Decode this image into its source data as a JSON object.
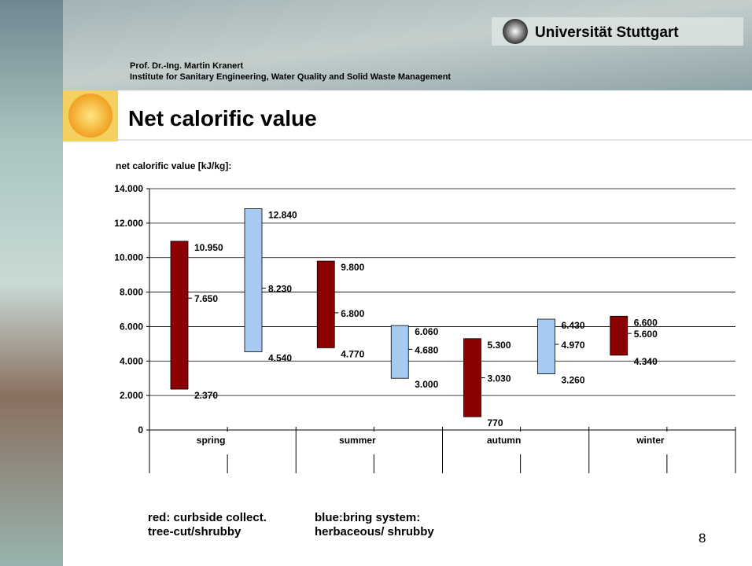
{
  "slide": {
    "university": "Universität Stuttgart",
    "author": "Prof. Dr.-Ing. Martin Kranert",
    "institute": "Institute for Sanitary Engineering, Water Quality and Solid Waste Management",
    "page": "8"
  },
  "chart_data": {
    "type": "range-bar",
    "title": "Net calorific value",
    "y_label": "net calorific value [kJ/kg]:",
    "categories": [
      "spring",
      "summer",
      "autumn",
      "winter"
    ],
    "ylim": [
      0,
      14000
    ],
    "yticks": [
      0,
      {
        "value": 2000,
        "label": "2.000"
      },
      {
        "value": 4000,
        "label": "4.000"
      },
      {
        "value": 6000,
        "label": "6.000"
      },
      {
        "value": 8000,
        "label": "8.000"
      },
      {
        "value": 10000,
        "label": "10.000"
      },
      {
        "value": 12000,
        "label": "12.000"
      },
      {
        "value": 14000,
        "label": "14.000"
      }
    ],
    "grid": true,
    "series": [
      {
        "name_lines": [
          "red: curbside collect.",
          "tree-cut/shrubby"
        ],
        "color": "#8b0000",
        "min": {
          "values": [
            2370,
            4770,
            770,
            4340
          ],
          "value_labels": [
            "2.370",
            "4.770",
            "770",
            "4.340"
          ]
        },
        "mean": {
          "values": [
            7650,
            6800,
            3030,
            5600
          ],
          "value_labels": [
            "7.650",
            "6.800",
            "3.030",
            "5.600"
          ]
        },
        "max": {
          "values": [
            10950,
            9800,
            5300,
            6600
          ],
          "value_labels": [
            "10.950",
            "9.800",
            "5.300",
            "6.600"
          ]
        }
      },
      {
        "name_lines": [
          "blue:bring system:",
          "herbaceous/ shrubby"
        ],
        "color": "#a6caf0",
        "min": {
          "values": [
            4540,
            3000,
            3260,
            null
          ],
          "value_labels": [
            "4.540",
            "3.000",
            "3.260",
            null
          ]
        },
        "mean": {
          "values": [
            8230,
            4680,
            4970,
            null
          ],
          "value_labels": [
            "8.230",
            "4.680",
            "4.970",
            null
          ]
        },
        "max": {
          "values": [
            12840,
            6060,
            6430,
            null
          ],
          "value_labels": [
            "12.840",
            "6.060",
            "6.430",
            null
          ]
        }
      }
    ]
  }
}
